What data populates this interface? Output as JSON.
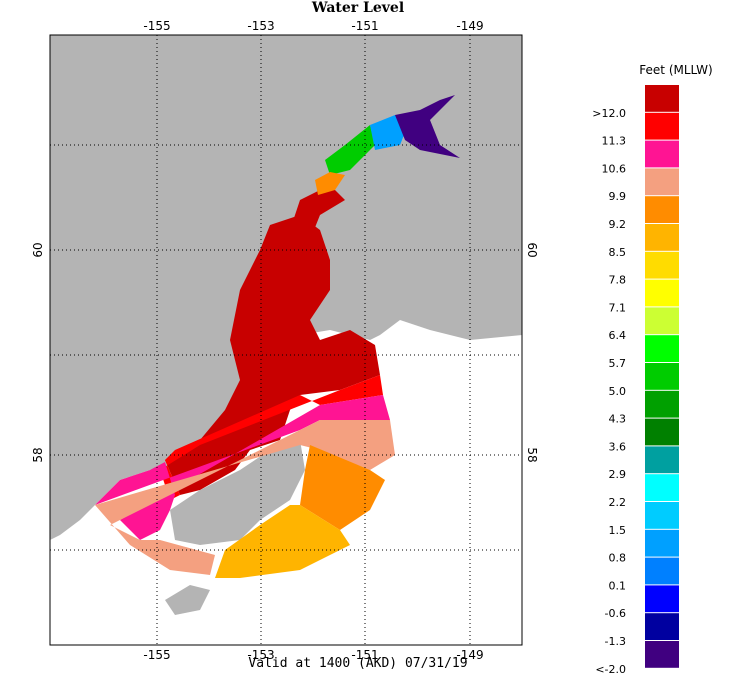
{
  "title": "Water Level",
  "footer": "Valid at 1400 (AKD) 07/31/19",
  "map": {
    "lon_labels": [
      "-155",
      "-153",
      "-151",
      "-149"
    ],
    "lat_labels": [
      "60",
      "58"
    ]
  },
  "legend": {
    "title": "Feet (MLLW)",
    "items": [
      {
        "label": ">12.0",
        "color": "#c80000"
      },
      {
        "label": "11.3",
        "color": "#ff0000"
      },
      {
        "label": "10.6",
        "color": "#ff1493"
      },
      {
        "label": "9.9",
        "color": "#f4a080"
      },
      {
        "label": "9.2",
        "color": "#ff8c00"
      },
      {
        "label": "8.5",
        "color": "#ffb400"
      },
      {
        "label": "7.8",
        "color": "#ffdc00"
      },
      {
        "label": "7.1",
        "color": "#ffff00"
      },
      {
        "label": "6.4",
        "color": "#ccff33"
      },
      {
        "label": "5.7",
        "color": "#00ff00"
      },
      {
        "label": "5.0",
        "color": "#00cc00"
      },
      {
        "label": "4.3",
        "color": "#00a000"
      },
      {
        "label": "3.6",
        "color": "#008000"
      },
      {
        "label": "2.9",
        "color": "#00a0a0"
      },
      {
        "label": "2.2",
        "color": "#00ffff"
      },
      {
        "label": "1.5",
        "color": "#00ccff"
      },
      {
        "label": "0.8",
        "color": "#00a0ff"
      },
      {
        "label": "0.1",
        "color": "#0080ff"
      },
      {
        "label": "-0.6",
        "color": "#0000ff"
      },
      {
        "label": "-1.3",
        "color": "#0000a0"
      },
      {
        "label": "<-2.0",
        "color": "#400080"
      }
    ]
  }
}
